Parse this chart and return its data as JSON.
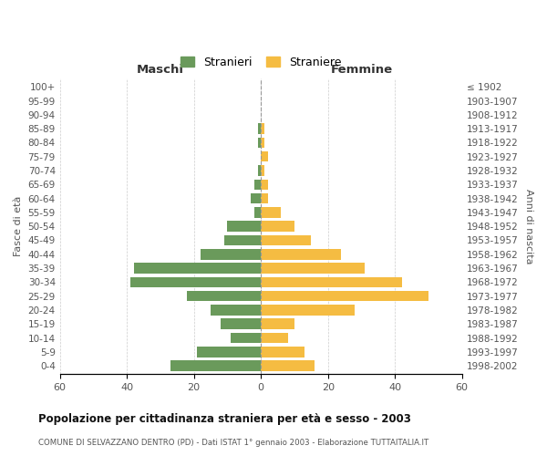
{
  "age_groups": [
    "100+",
    "95-99",
    "90-94",
    "85-89",
    "80-84",
    "75-79",
    "70-74",
    "65-69",
    "60-64",
    "55-59",
    "50-54",
    "45-49",
    "40-44",
    "35-39",
    "30-34",
    "25-29",
    "20-24",
    "15-19",
    "10-14",
    "5-9",
    "0-4"
  ],
  "birth_years": [
    "≤ 1902",
    "1903-1907",
    "1908-1912",
    "1913-1917",
    "1918-1922",
    "1923-1927",
    "1928-1932",
    "1933-1937",
    "1938-1942",
    "1943-1947",
    "1948-1952",
    "1953-1957",
    "1958-1962",
    "1963-1967",
    "1968-1972",
    "1973-1977",
    "1978-1982",
    "1983-1987",
    "1988-1992",
    "1993-1997",
    "1998-2002"
  ],
  "maschi": [
    0,
    0,
    0,
    1,
    1,
    0,
    1,
    2,
    3,
    2,
    10,
    11,
    18,
    38,
    39,
    22,
    15,
    12,
    9,
    19,
    27
  ],
  "femmine": [
    0,
    0,
    0,
    1,
    1,
    2,
    1,
    2,
    2,
    6,
    10,
    15,
    24,
    31,
    42,
    50,
    28,
    10,
    8,
    13,
    16
  ],
  "maschi_color": "#6a9a5b",
  "femmine_color": "#f5bc42",
  "title": "Popolazione per cittadinanza straniera per età e sesso - 2003",
  "subtitle": "COMUNE DI SELVAZZANO DENTRO (PD) - Dati ISTAT 1° gennaio 2003 - Elaborazione TUTTAITALIA.IT",
  "xlabel_left": "Maschi",
  "xlabel_right": "Femmine",
  "ylabel_left": "Fasce di età",
  "ylabel_right": "Anni di nascita",
  "legend_maschi": "Stranieri",
  "legend_femmine": "Straniere",
  "xlim": 60,
  "background_color": "#ffffff",
  "grid_color": "#cccccc"
}
